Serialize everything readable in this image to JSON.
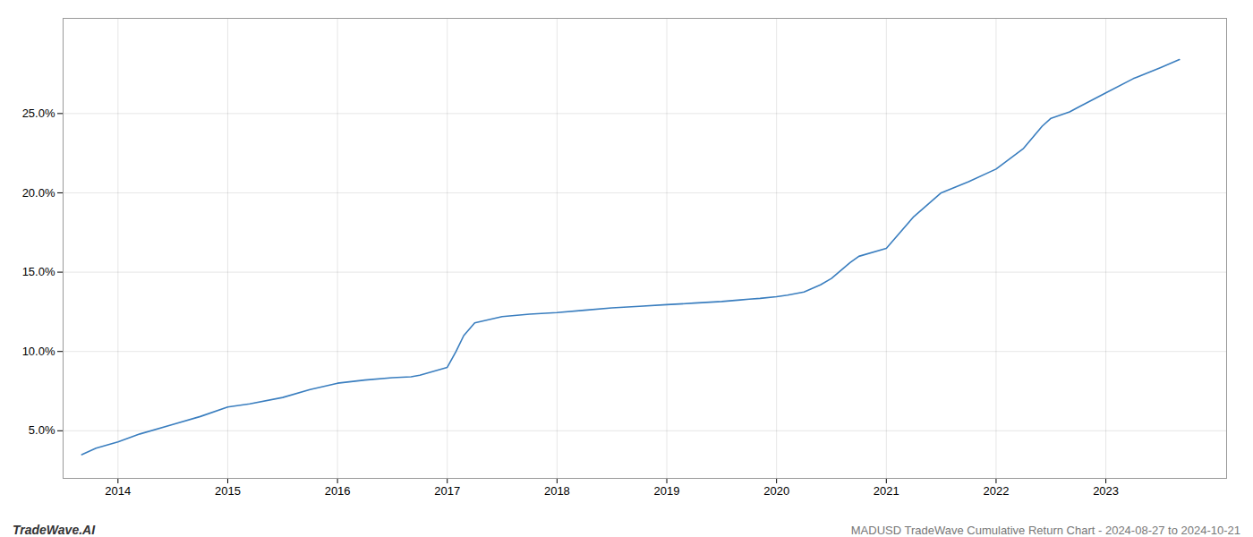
{
  "chart_data": {
    "type": "line",
    "title": "MADUSD TradeWave Cumulative Return Chart - 2024-08-27 to 2024-10-21",
    "annotations": [
      "TradeWave.AI"
    ],
    "color": "#3a7ebf",
    "x": [
      2013.67,
      2013.8,
      2014.0,
      2014.2,
      2014.5,
      2014.75,
      2015.0,
      2015.2,
      2015.5,
      2015.75,
      2016.0,
      2016.25,
      2016.5,
      2016.67,
      2016.75,
      2017.0,
      2017.08,
      2017.15,
      2017.25,
      2017.5,
      2017.75,
      2018.0,
      2018.25,
      2018.5,
      2018.75,
      2019.0,
      2019.25,
      2019.5,
      2019.67,
      2019.75,
      2019.85,
      2020.0,
      2020.1,
      2020.25,
      2020.4,
      2020.5,
      2020.67,
      2020.75,
      2021.0,
      2021.25,
      2021.5,
      2021.75,
      2022.0,
      2022.25,
      2022.42,
      2022.5,
      2022.67,
      2022.75,
      2023.0,
      2023.25,
      2023.5,
      2023.67
    ],
    "values": [
      3.5,
      3.9,
      4.3,
      4.8,
      5.4,
      5.9,
      6.5,
      6.7,
      7.1,
      7.6,
      8.0,
      8.2,
      8.35,
      8.4,
      8.5,
      9.0,
      10.0,
      11.0,
      11.8,
      12.2,
      12.35,
      12.45,
      12.6,
      12.75,
      12.85,
      12.95,
      13.05,
      13.15,
      13.25,
      13.3,
      13.35,
      13.45,
      13.55,
      13.75,
      14.2,
      14.6,
      15.6,
      16.0,
      16.5,
      18.5,
      20.0,
      20.7,
      21.5,
      22.8,
      24.2,
      24.7,
      25.1,
      25.4,
      26.3,
      27.2,
      27.9,
      28.4
    ],
    "xlim": [
      2013.5,
      2024.1
    ],
    "xticks": [
      2014,
      2015,
      2016,
      2017,
      2018,
      2019,
      2020,
      2021,
      2022,
      2023
    ],
    "ylim": [
      2.0,
      31.0
    ],
    "yticks": [
      {
        "value": 5.0,
        "label": "5.0%"
      },
      {
        "value": 10.0,
        "label": "10.0%"
      },
      {
        "value": 15.0,
        "label": "15.0%"
      },
      {
        "value": 20.0,
        "label": "20.0%"
      },
      {
        "value": 25.0,
        "label": "25.0%"
      }
    ],
    "grid": true
  }
}
